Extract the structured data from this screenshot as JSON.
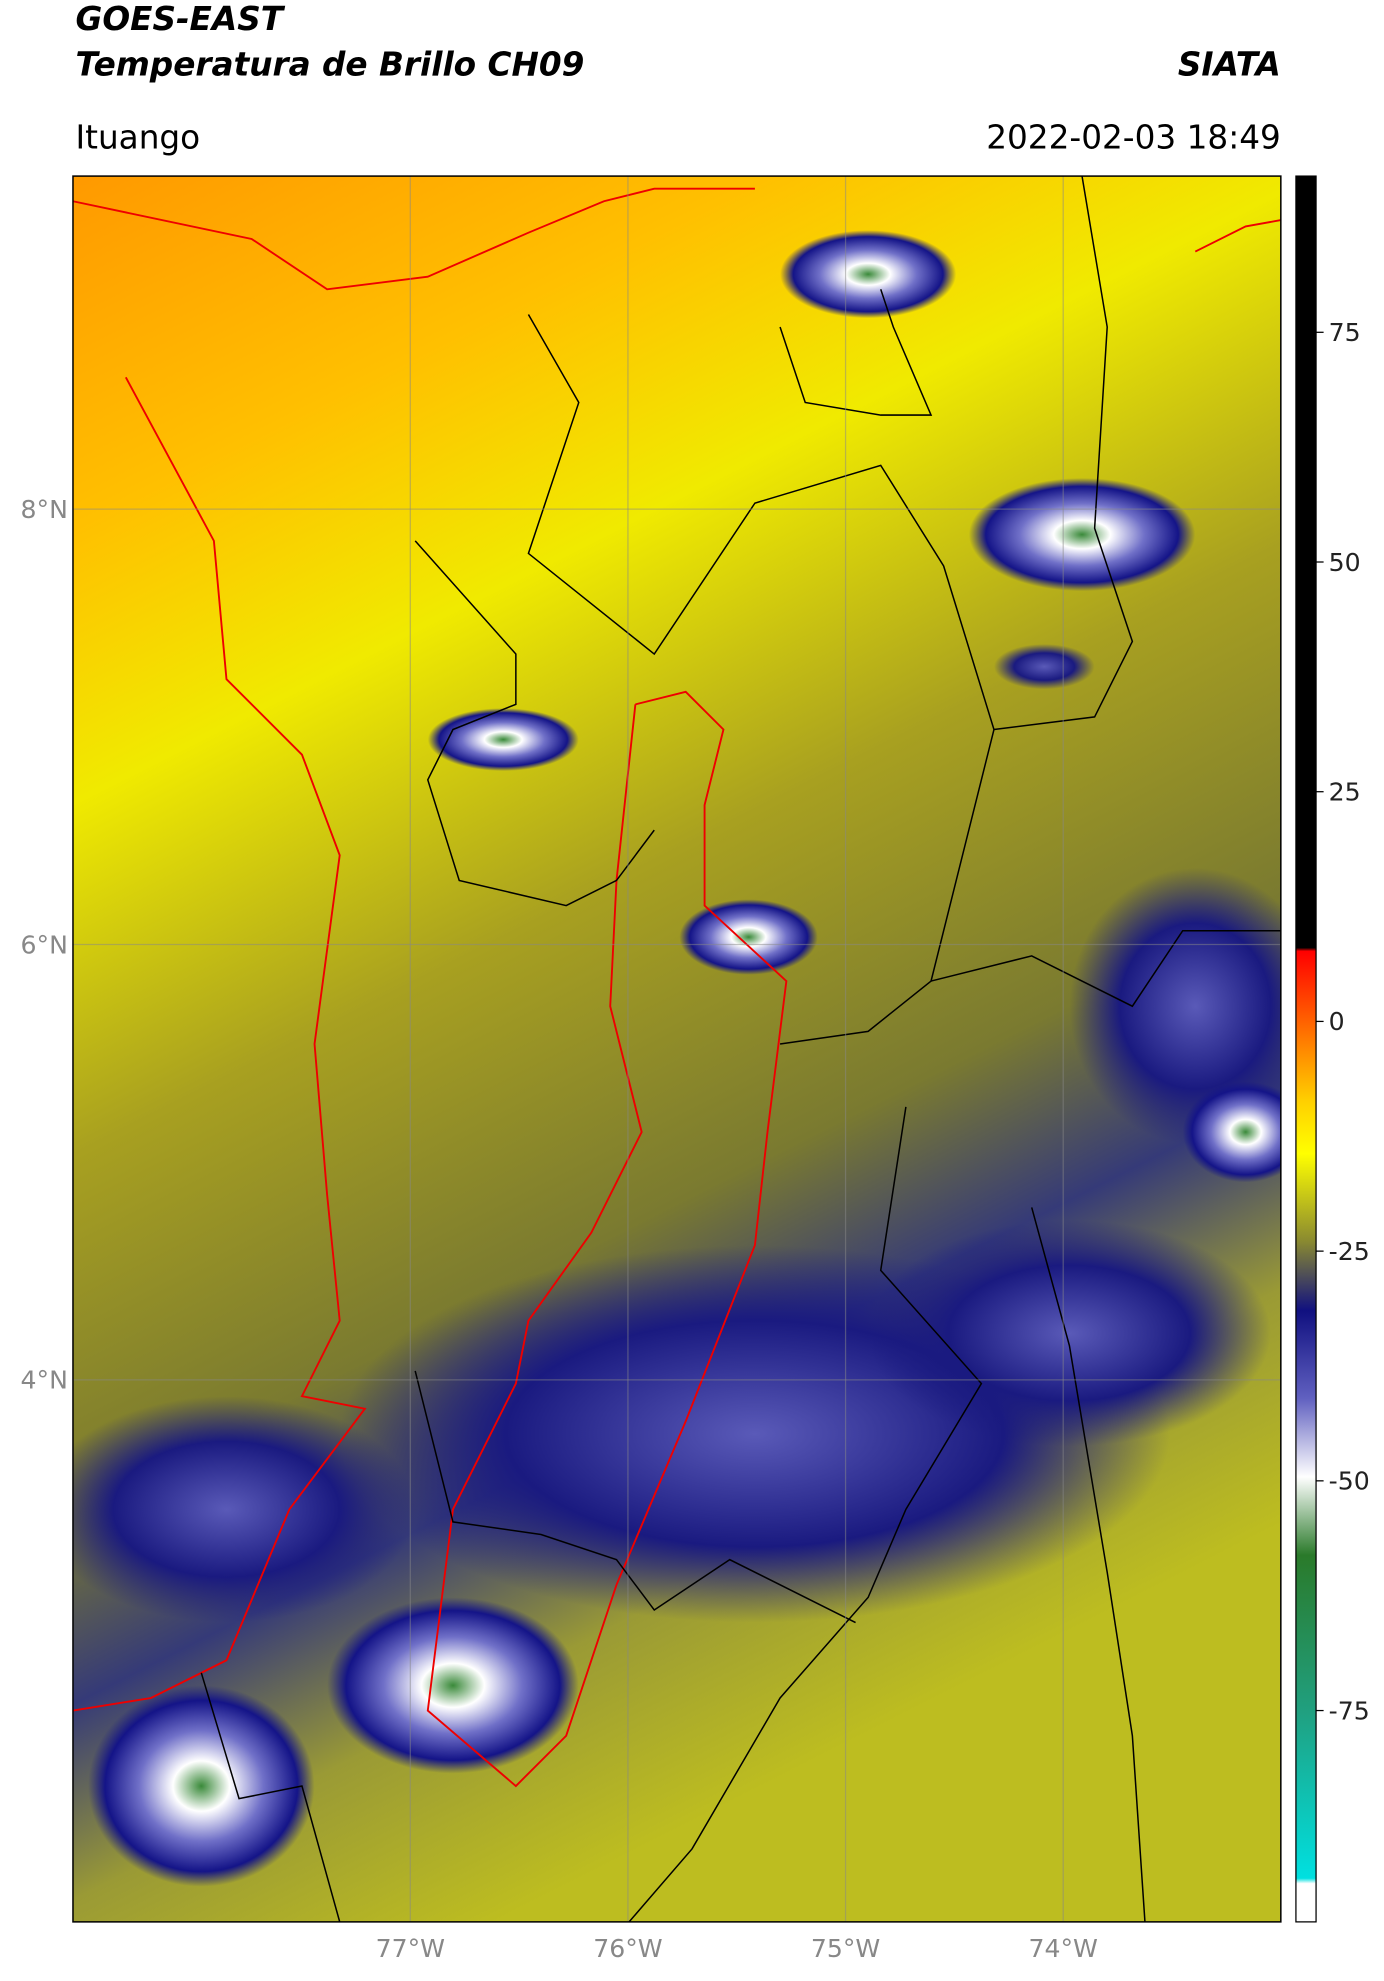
{
  "title": "GOES-EAST",
  "subtitle": "Temperatura de Brillo CH09",
  "source": "SIATA",
  "location": "Ituango",
  "datetime": "2022-02-03 18:49",
  "map": {
    "lon_lim": [
      -78.55,
      -73.0
    ],
    "lat_lim": [
      1.51,
      9.53
    ],
    "lon_ticks": [
      {
        "value": -77,
        "label": "77°W"
      },
      {
        "value": -76,
        "label": "76°W"
      },
      {
        "value": -75,
        "label": "75°W"
      },
      {
        "value": -74,
        "label": "74°W"
      }
    ],
    "lat_ticks": [
      {
        "value": 8,
        "label": "8°N"
      },
      {
        "value": 6,
        "label": "6°N"
      },
      {
        "value": 4,
        "label": "4°N"
      }
    ]
  },
  "colorbar": {
    "lim": [
      -98,
      92
    ],
    "ticks": [
      75,
      50,
      25,
      0,
      -25,
      -50,
      -75
    ]
  }
}
